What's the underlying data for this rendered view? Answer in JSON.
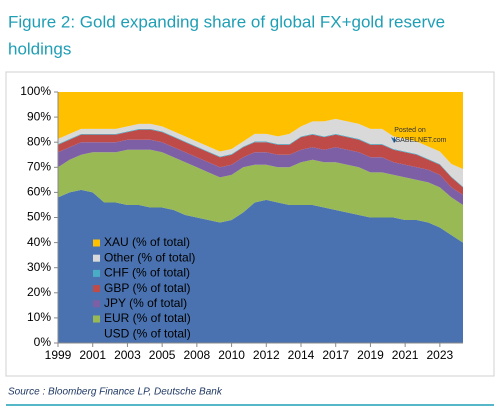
{
  "chart_data": {
    "type": "stacked-area",
    "title": "Figure 2: Gold expanding share of global FX+gold reserve",
    "title_line2": "holdings",
    "source": "Source : Bloomberg Finance LP, Deutsche Bank",
    "watermark": [
      "Posted on",
      "ISABELNET.com"
    ],
    "legend": "lower left",
    "grid": false,
    "categories": [
      "1999",
      null,
      null,
      "2001",
      null,
      null,
      "2003",
      null,
      null,
      "2005",
      null,
      null,
      "2008",
      null,
      null,
      "2010",
      null,
      null,
      "2012",
      null,
      null,
      "2014",
      null,
      null,
      "2017",
      null,
      null,
      "2019",
      null,
      null,
      "2021",
      null,
      null,
      "2023",
      null,
      null
    ],
    "ylim": [
      0,
      100
    ],
    "yticks": [
      {
        "value": 0,
        "label": "0%"
      },
      {
        "value": 10,
        "label": "10%"
      },
      {
        "value": 20,
        "label": "20%"
      },
      {
        "value": 30,
        "label": "30%"
      },
      {
        "value": 40,
        "label": "40%"
      },
      {
        "value": 50,
        "label": "50%"
      },
      {
        "value": 60,
        "label": "60%"
      },
      {
        "value": 70,
        "label": "70%"
      },
      {
        "value": 80,
        "label": "80%"
      },
      {
        "value": 90,
        "label": "90%"
      },
      {
        "value": 100,
        "label": "100%"
      }
    ],
    "series": [
      {
        "name": "USD (% of total)",
        "color": "#4a72b0",
        "values": [
          58,
          60,
          61,
          60,
          56,
          56,
          55,
          55,
          54,
          54,
          53,
          51,
          50,
          49,
          48,
          49,
          52,
          56,
          57,
          56,
          55,
          55,
          55,
          54,
          53,
          52,
          51,
          50,
          50,
          50,
          49,
          49,
          48,
          46,
          43,
          40
        ]
      },
      {
        "name": "EUR (% of total)",
        "color": "#98b954",
        "values": [
          12,
          13,
          14,
          16,
          20,
          20,
          22,
          22,
          23,
          22,
          21,
          21,
          20,
          19,
          18,
          18,
          18,
          15,
          14,
          14,
          15,
          17,
          18,
          18,
          19,
          19,
          19,
          18,
          18,
          17,
          17,
          16,
          16,
          16,
          15,
          15
        ]
      },
      {
        "name": "JPY (% of total)",
        "color": "#7d5fa6",
        "values": [
          6,
          5,
          5,
          4,
          4,
          4,
          4,
          4,
          4,
          4,
          4,
          4,
          4,
          4,
          4,
          4,
          4,
          5,
          5,
          5,
          5,
          5,
          5,
          5,
          6,
          6,
          6,
          6,
          6,
          5,
          5,
          5,
          5,
          5,
          4,
          4
        ]
      },
      {
        "name": "GBP (% of total)",
        "color": "#be4b48",
        "values": [
          3,
          3,
          3,
          3,
          3,
          3,
          3,
          4,
          4,
          4,
          4,
          4,
          4,
          4,
          4,
          4,
          4,
          4,
          4,
          4,
          4,
          5,
          5,
          5,
          5,
          5,
          5,
          5,
          5,
          5,
          5,
          5,
          4,
          4,
          4,
          3
        ]
      },
      {
        "name": "CHF (% of total)",
        "color": "#4bacc6",
        "values": [
          0.3,
          0.3,
          0.3,
          0.3,
          0.3,
          0.3,
          0.3,
          0.3,
          0.3,
          0.3,
          0.3,
          0.3,
          0.3,
          0.3,
          0.3,
          0.3,
          0.3,
          0.3,
          0.3,
          0.3,
          0.3,
          0.3,
          0.3,
          0.3,
          0.3,
          0.3,
          0.3,
          0.3,
          0.3,
          0.3,
          0.3,
          0.3,
          0.3,
          0.3,
          0.3,
          0.3
        ]
      },
      {
        "name": "Other (% of total)",
        "color": "#d9d9d9",
        "values": [
          2,
          2,
          2,
          2,
          2,
          2,
          2,
          2,
          2,
          2,
          2,
          2,
          2,
          2,
          2,
          2,
          2,
          3,
          3,
          3,
          4,
          4,
          5,
          6,
          6,
          6,
          6,
          6,
          6,
          5,
          5,
          5,
          5,
          5,
          5,
          7
        ]
      },
      {
        "name": "XAU (% of total)",
        "color": "#ffc000",
        "values": [
          18.7,
          16.7,
          14.7,
          14.7,
          14.7,
          14.7,
          13.7,
          12.7,
          12.7,
          13.7,
          15.7,
          17.7,
          19.7,
          21.7,
          23.7,
          22.7,
          19.7,
          16.7,
          16.7,
          17.7,
          16.7,
          13.7,
          11.7,
          11.7,
          10.7,
          11.7,
          12.7,
          14.7,
          14.7,
          17.7,
          18.7,
          19.7,
          21.7,
          23.7,
          28.7,
          30.7
        ]
      }
    ]
  }
}
